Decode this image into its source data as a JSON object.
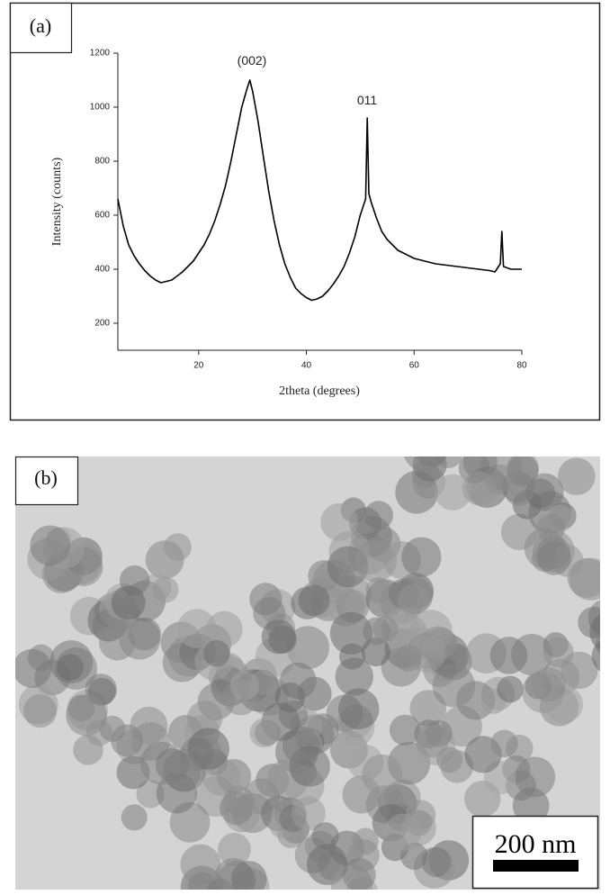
{
  "panel_labels": [
    "(a)",
    "(b)"
  ],
  "scale_bar_label": "200 nm",
  "chart_data": {
    "type": "line",
    "x_label": "2theta (degrees)",
    "y_label": "Intensity (counts)",
    "annotations": [
      "(002)",
      "011"
    ],
    "color": "#000000",
    "xlim": [
      5,
      80
    ],
    "ylim": [
      100,
      1200
    ],
    "xticks": [
      20,
      40,
      60,
      80
    ],
    "yticks": [
      200,
      400,
      600,
      800,
      1000,
      1200
    ],
    "x": [
      5,
      6,
      7,
      8,
      9,
      10,
      11,
      12,
      13,
      14,
      15,
      16,
      17,
      18,
      19,
      20,
      21,
      22,
      23,
      24,
      25,
      26,
      27,
      28,
      29,
      29.5,
      30,
      31,
      32,
      33,
      34,
      35,
      36,
      37,
      38,
      39,
      40,
      41,
      42,
      43,
      44,
      45,
      46,
      47,
      48,
      49,
      50,
      51,
      51.3,
      51.6,
      52,
      53,
      54,
      55,
      56,
      57,
      58,
      59,
      60,
      62,
      64,
      66,
      68,
      70,
      72,
      74,
      75,
      76,
      76.3,
      76.6,
      78,
      80
    ],
    "values": [
      660,
      560,
      490,
      450,
      420,
      395,
      375,
      360,
      350,
      355,
      360,
      375,
      390,
      410,
      430,
      460,
      490,
      530,
      580,
      640,
      710,
      800,
      900,
      1000,
      1070,
      1100,
      1060,
      950,
      820,
      690,
      580,
      490,
      420,
      370,
      330,
      310,
      295,
      285,
      290,
      300,
      320,
      345,
      375,
      410,
      460,
      520,
      600,
      660,
      960,
      680,
      650,
      590,
      540,
      510,
      490,
      470,
      460,
      450,
      440,
      430,
      420,
      415,
      410,
      405,
      400,
      395,
      390,
      420,
      540,
      410,
      400,
      400
    ]
  }
}
